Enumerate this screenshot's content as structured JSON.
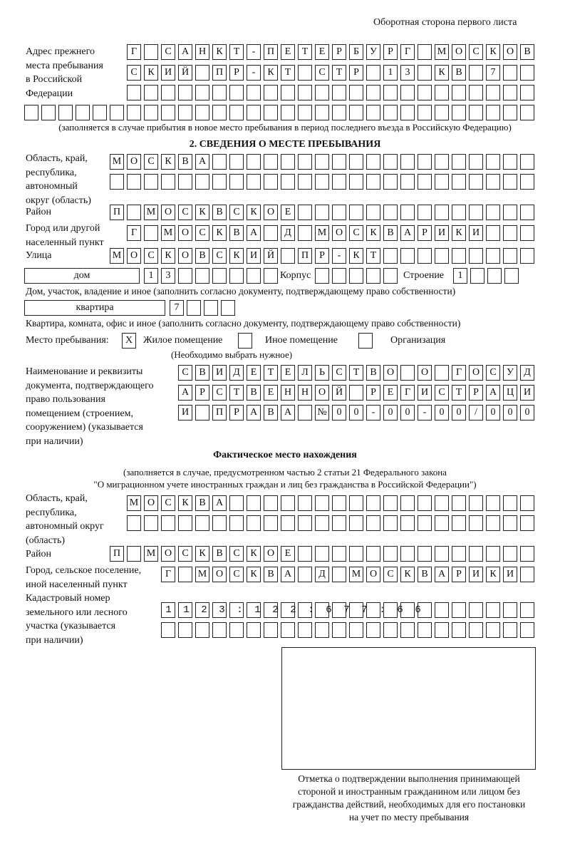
{
  "header": "Оборотная сторона первого листа",
  "previous_address": {
    "label": [
      "Адрес прежнего",
      "места пребывания",
      "в Российской",
      "Федерации"
    ],
    "rows": [
      "Г САНКТ-ПЕТЕРБУРГ МОСКОВ",
      "СКИЙ ПР-КТ СТР 13 КВ 7",
      "",
      ""
    ],
    "note": "(заполняется в случае прибытия в новое место пребывания в период последнего въезда в Российскую Федерацию)"
  },
  "section2": {
    "title": "2. СВЕДЕНИЯ О МЕСТЕ ПРЕБЫВАНИЯ",
    "region_label": [
      "Область, край,",
      "республика,",
      "автономный",
      "округ (область)"
    ],
    "region_rows": [
      "МОСКВА",
      ""
    ],
    "district_label": "Район",
    "district": "П МОСКВСКОЕ",
    "city_label": [
      "Город или другой",
      "населенный пункт"
    ],
    "city": "Г МОСКВА Д МОСКВАРИКИ",
    "street_label": "Улица",
    "street": "МОСКОВСКИЙ ПР-КТ",
    "house_type": "дом",
    "house_number": "13",
    "korpus_label": "Корпус",
    "korpus": "",
    "building_label": "Строение",
    "building": "1",
    "house_note": "Дом, участок, владение и иное (заполнить согласно документу, подтверждающему право собственности)",
    "apt_type": "квартира",
    "apt_number": "7",
    "apt_note": "Квартира, комната, офис и иное (заполнить согласно документу, подтверждающему право собственности)",
    "place_label": "Место пребывания:",
    "place_options": [
      {
        "label": "Жилое помещение",
        "mark": "X"
      },
      {
        "label": "Иное помещение",
        "mark": ""
      },
      {
        "label": "Организация",
        "mark": ""
      }
    ],
    "place_hint": "(Необходимо выбрать нужное)",
    "doc_label": [
      "Наименование и реквизиты",
      "документа, подтверждающего",
      "право пользования",
      "помещением (строением,",
      "сооружением) (указывается",
      "при наличии)"
    ],
    "doc_rows": [
      "СВИДЕТЕЛЬСТВО О ГОСУД",
      "АРСТВЕННОЙ РЕГИСТРАЦИ",
      "И ПРАВА №00-00-00/000"
    ]
  },
  "actual": {
    "title": "Фактическое место нахождения",
    "note": [
      "(заполняется в случае, предусмотренном частью 2 статьи 21 Федерального закона",
      "\"О миграционном учете иностранных граждан и лиц без гражданства в Российской Федерации\")"
    ],
    "region_label": [
      "Область, край,",
      "республика,",
      "автономный округ",
      "(область)"
    ],
    "region_rows": [
      "МОСКВА",
      ""
    ],
    "district_label": "Район",
    "district": "П МОСКВСКОЕ",
    "city_label": [
      "Город, сельское поселение,",
      "иной населенный пункт"
    ],
    "city": "Г МОСКВА Д МОСКВАРИКИ",
    "cadastral_label": [
      "Кадастровый номер",
      "земельного или лесного",
      "участка (указывается",
      "при наличии)"
    ],
    "cadastral_rows": [
      "1123:122:677:66",
      ""
    ]
  },
  "confirmation": {
    "caption": [
      "Отметка о подтверждении выполнения принимающей",
      "стороной и иностранным гражданином или лицом без",
      "гражданства действий, необходимых для его постановки",
      "на учет по месту пребывания"
    ]
  }
}
